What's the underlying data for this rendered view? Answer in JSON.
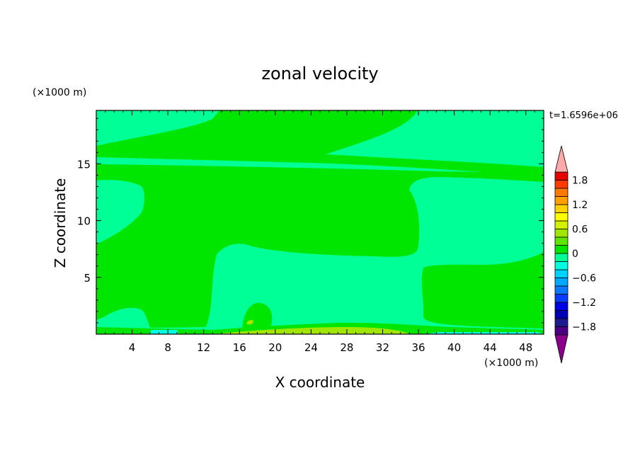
{
  "chart_data": {
    "type": "heatmap",
    "title": "zonal velocity",
    "xlabel": "X coordinate",
    "ylabel": "Z coordinate",
    "x_unit": "(×1000 m)",
    "y_unit": "(×1000 m)",
    "time_label": "t=1.6596e+06",
    "xlim": [
      0,
      50
    ],
    "ylim": [
      0,
      19.7
    ],
    "x_ticks": [
      4,
      8,
      12,
      16,
      20,
      24,
      28,
      32,
      36,
      40,
      44,
      48
    ],
    "y_ticks": [
      5,
      10,
      15
    ],
    "colorbar": {
      "levels": [
        -2.0,
        -1.8,
        -1.6,
        -1.4,
        -1.2,
        -1.0,
        -0.8,
        -0.6,
        -0.4,
        -0.2,
        0,
        0.2,
        0.4,
        0.6,
        0.8,
        1.0,
        1.2,
        1.4,
        1.6,
        1.8,
        2.0
      ],
      "tick_labels": [
        "1.8",
        "1.2",
        "0.6",
        "0",
        "−0.6",
        "−1.2",
        "−1.8"
      ],
      "tick_values": [
        1.8,
        1.2,
        0.6,
        0,
        -0.6,
        -1.2,
        -1.8
      ],
      "colors_low_to_high": [
        "#4b0082",
        "#1c1c8c",
        "#0000b4",
        "#0000e6",
        "#0a3cff",
        "#0a78ff",
        "#00a8ff",
        "#00d2ff",
        "#00ffe1",
        "#00ff96",
        "#00e600",
        "#5fe600",
        "#a0e600",
        "#d2f000",
        "#ffff00",
        "#ffd200",
        "#ffa000",
        "#ff7800",
        "#ff3c00",
        "#e60000"
      ],
      "under_color": "#8b008b",
      "over_color": "#ffaaaa"
    },
    "palette": {
      "light_green": "#00ff96",
      "green": "#00e600",
      "yellow_green": "#a0e600",
      "cyan": "#00ffe1"
    }
  }
}
